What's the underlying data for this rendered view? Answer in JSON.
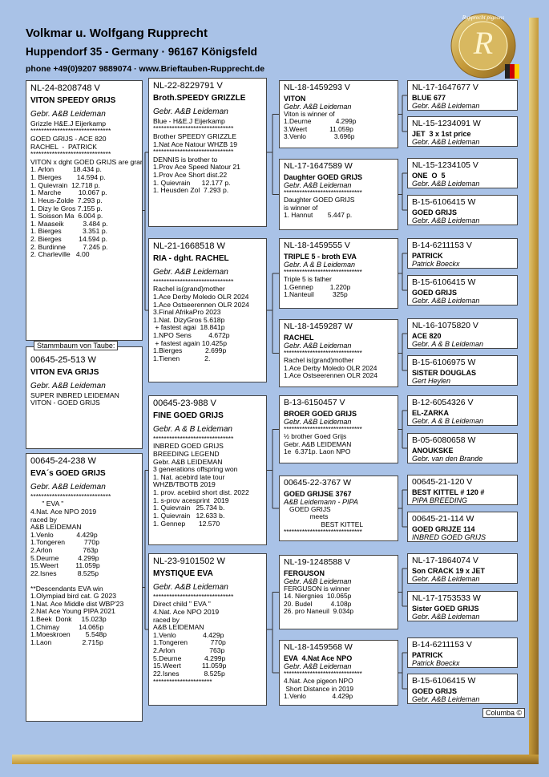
{
  "header": {
    "title": "Volkmar u. Wolfgang Rupprecht",
    "address": "Huppendorf 35 - Germany  ·  96167 Königsfeld",
    "contact": "phone +49(0)9207 9889074  ·  www.Brieftauben-Rupprecht.de"
  },
  "logo": {
    "text": "Rupprecht pigeons",
    "letter": "R"
  },
  "col1": [
    {
      "id": "NL-24-8208748 V",
      "name": "VITON SPEEDY GRIJS",
      "breeder": "Gebr. A&B Leideman",
      "lines": [
        "Grizzle H&E.J Eijerkamp",
        "******************************",
        "GOED GRIJS - ACE 820",
        "RACHEL  -  PATRICK",
        "******************************",
        "VITON x dght GOED GRIJS are grandparents",
        "1. Arlon          18.434 p.",
        "1. Bierges        14.594 p.",
        "1. Quievrain  12.718 p.",
        "1. Marche         10.067 p.",
        "1. Heus-Zolde  7.293 p.",
        "1. Dizy le Gros 7.155 p.",
        "1. Soisson Ma  6.004 p.",
        "1. Maaseik          3.484 p.",
        "1. Bierges           3.351 p.",
        "2. Bierges         14.594 p.",
        "2. Burdinne         7.245 p.",
        "2. Charleville   4.00"
      ]
    },
    {
      "label": "Stammbaum von Taube:",
      "id": "00645-25-513 W",
      "name": "VITON EVA GRIJS",
      "breeder": "Gebr. A&B Leideman",
      "lines": [
        "SUPER INBRED LEIDEMAN",
        "VITON - GOED GRIJS"
      ]
    },
    {
      "id": "00645-24-238 W",
      "name": "EVA´s GOED GRIJS",
      "breeder": "Gebr. A&B Leideman",
      "lines": [
        "******************************",
        "      \" EVA \"",
        "4.Nat. Ace NPO 2019",
        "raced by",
        "A&B LEIDEMAN",
        "1.Venlo            4.429p",
        "1.Tongeren          770p",
        "2.Arlon                763p",
        "5.Deurne          4.299p",
        "15.Weert         11.059p",
        "22.Isnes           8.525p",
        "**Descendants EVA win",
        "1.Olympiad bird cat. G 2023",
        "1.Nat. Ace Middle dist WBP'23",
        "2.Nat Ace Young PIPA 2021",
        "1.Beek  Donk     15.023p",
        "1.Chimay          14.065p",
        "1.Moeskroen        5.548p",
        "1.Laon                2.715p"
      ]
    }
  ],
  "col2": [
    {
      "id": "NL-22-8229791 V",
      "name": "Broth.SPEEDY GRIZZLE",
      "breeder": "Gebr. A&B Leideman",
      "lines": [
        "Blue - H&E.J Eijerkamp",
        "******************************",
        "Brother SPEEDY GRIZZLE",
        "1.Nat Ace Natour WHZB 19",
        "******************************",
        "DENNIS is brother to",
        "1.Prov Ace Speed Natour 21",
        "1.Prov Ace Short dist.22",
        "1. Quievrain      12.177 p.",
        "1. Heusden Zol  7.293 p."
      ]
    },
    {
      "id": "NL-21-1668518 W",
      "name": "RIA - dght. RACHEL",
      "breeder": "Gebr. A&B Leideman",
      "lines": [
        "******************************",
        "Rachel is(grand)mother",
        "1.Ace Derby Moledo OLR 2024",
        "1.Ace Ostseerennen OLR 2024",
        "3.Final AfrikaPro 2023",
        "1.Nat. DizyGros 5.618p",
        " + fastest agai  18.841p",
        "1.NPO Sens         4.672p",
        " + fastest again 10.425p",
        "1.Bierges            2.699p",
        "1.Tienen             2."
      ]
    },
    {
      "id": "00645-23-988 V",
      "name": "FINE GOED GRIJS",
      "breeder": "Gebr. A & B Leideman",
      "lines": [
        "******************************",
        "INBRED GOED GRIJS",
        "BREEDING LEGEND",
        "Gebr. A&B LEIDEMAN",
        "3 generations offspring won",
        "1. Nat. acebird late tour",
        "WHZB/TBOTB 2019",
        "1. prov. acebird short dist. 2022",
        "1. s-prov acesprint  2019",
        "1. Quievrain   25.734 b.",
        "1. Quievrain   12.633 b.",
        "1. Gennep       12.570"
      ]
    },
    {
      "id": "NL-23-9101502 W",
      "name": "MYSTIQUE EVA",
      "breeder": "Gebr. A&B Leideman",
      "lines": [
        "******************************",
        "Direct child \" EVA \"",
        "4.Nat. Ace NPO 2019",
        "raced by",
        "A&B LEIDEMAN",
        "1.Venlo              4.429p",
        "1.Tongeren            770p",
        "2.Arlon                  763p",
        "5.Deurne            4.299p",
        "15.Weert           11.059p",
        "22.Isnes             8.525p",
        "**********************"
      ]
    }
  ],
  "col3": [
    {
      "id": "NL-18-1459293 V",
      "name": "VITON",
      "breeder": "Gebr. A&B Leideman",
      "lines": [
        "Viton is winner of",
        "1.Deurne             4.299p",
        "3.Weert            11.059p",
        "3.Venlo               3.696p"
      ]
    },
    {
      "id": "NL-17-1647589 W",
      "name": "Daughter GOED GRIJS",
      "breeder": "Gebr. A&B Leideman",
      "lines": [
        "******************************",
        "Daughter GOED GRIJS",
        "is winner of",
        "1. Hannut        5.447 p."
      ]
    },
    {
      "id": "NL-18-1459555 V",
      "name": "TRIPLE 5 - broth EVA",
      "breeder": "Gebr. A & B Leideman",
      "lines": [
        "******************************",
        "Triple 5 is father",
        "1.Gennep         1.220p",
        "1.Nanteuil          325p"
      ]
    },
    {
      "id": "NL-18-1459287 W",
      "name": "RACHEL",
      "breeder": "Gebr. A&B Leideman",
      "lines": [
        "******************************",
        "Rachel is(grand)mother",
        "1.Ace Derby Moledo OLR 2024",
        "1.Ace Ostseerennen OLR 2024"
      ]
    },
    {
      "id": "B-13-6150457 V",
      "name": "BROER GOED GRIJS",
      "breeder": "Gebr. A&B Leideman",
      "lines": [
        "******************************",
        "½ brother Goed Grijs",
        "Gebr. A&B LEIDEMAN",
        "1e  6.371p. Laon NPO"
      ]
    },
    {
      "id": "00645-22-3767 W",
      "name": "GOED GRIJSE 3767",
      "breeder": "A&B Leidemann - PIPA",
      "lines": [
        "   GOED GRIJS",
        "              meets",
        "                    BEST KITTEL",
        "******************************"
      ]
    },
    {
      "id": "NL-19-1248588 V",
      "name": "FERGUSON",
      "breeder": "Gebr. A&B Leideman",
      "lines": [
        "FERGUSON is winner",
        "14. Niergnies  10.065p",
        "20. Budel          4.108p",
        "26. pro Naneuil  9.034p"
      ]
    },
    {
      "id": "NL-18-1459568 W",
      "name": "EVA  4.Nat Ace NPO",
      "breeder": "Gebr. A&B Leideman",
      "lines": [
        "******************************",
        "4.Nat. Ace pigeon NPO",
        " Short Distance in 2019",
        "1.Venlo              4.429p"
      ]
    }
  ],
  "col4": [
    {
      "id": "NL-17-1647677 V",
      "name": "BLUE 677",
      "breeder": "Gebr. A&B Leideman"
    },
    {
      "id": "NL-15-1234091 W",
      "name": "JET  3 x 1st price",
      "breeder": "Gebr. A&B Leideman"
    },
    {
      "id": "NL-15-1234105 V",
      "name": "ONE  O  5",
      "breeder": "Gebr. A&B Leideman"
    },
    {
      "id": "B-15-6106415 W",
      "name": "GOED GRIJS",
      "breeder": "Gebr. A&B Leideman"
    },
    {
      "id": "B-14-6211153 V",
      "name": "PATRICK",
      "breeder": "Patrick Boeckx"
    },
    {
      "id": "B-15-6106415 W",
      "name": "GOED GRIJS",
      "breeder": "Gebr. A&B Leideman"
    },
    {
      "id": "NL-16-1075820 V",
      "name": "ACE 820",
      "breeder": "Gebr. A & B Leideman"
    },
    {
      "id": "B-15-6106975 W",
      "name": "SISTER DOUGLAS",
      "breeder": "Gert Heylen"
    },
    {
      "id": "B-12-6054326 V",
      "name": "EL-ZARKA",
      "breeder": "Gebr. A & B Leideman"
    },
    {
      "id": "B-05-6080658 W",
      "name": "ANOUKSKE",
      "breeder": "Gebr. van den Brande"
    },
    {
      "id": "00645-21-120 V",
      "name": "BEST KITTEL # 120 #",
      "breeder": "PIPA BREEDING"
    },
    {
      "id": "00645-21-114 W",
      "name": "GOED GRIJZE 114",
      "breeder": "INBRED GOED GRIJS"
    },
    {
      "id": "NL-17-1864074 V",
      "name": "Son CRACK 19 x JET",
      "breeder": "Gebr. A&B Leideman"
    },
    {
      "id": "NL-17-1753533 W",
      "name": "Sister GOED GRIJS",
      "breeder": "Gebr. A&B Leideman"
    },
    {
      "id": "B-14-6211153 V",
      "name": "PATRICK",
      "breeder": "Patrick Boeckx"
    },
    {
      "id": "B-15-6106415 W",
      "name": "GOED GRIJS",
      "breeder": "Gebr. A&B Leideman"
    }
  ],
  "footer": "Columba ©"
}
